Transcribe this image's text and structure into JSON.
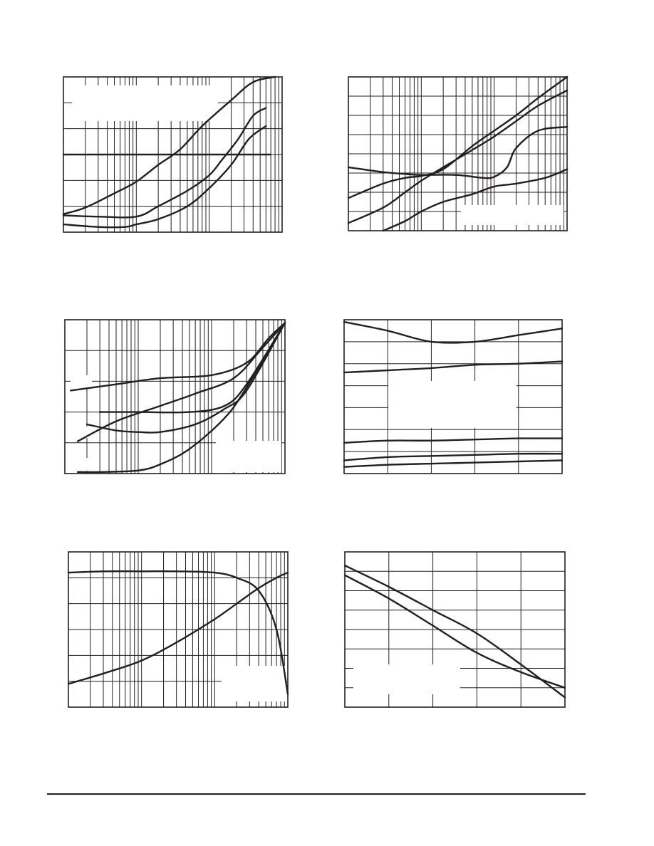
{
  "chart_data": [
    {
      "type": "line",
      "grid": true,
      "xscale": "log",
      "xlim": [
        1,
        1000
      ],
      "ylim": [
        0,
        6
      ],
      "series": [
        {
          "x": [
            1,
            2,
            5,
            10,
            20,
            40,
            80,
            200,
            400,
            800
          ],
          "y": [
            0.7,
            0.95,
            1.5,
            1.95,
            2.6,
            3.2,
            4.1,
            5.1,
            5.8,
            6.0
          ]
        },
        {
          "x": [
            1,
            3,
            10,
            20,
            50,
            100,
            150,
            250,
            400,
            600
          ],
          "y": [
            0.65,
            0.6,
            0.6,
            1.0,
            1.6,
            2.2,
            2.8,
            3.6,
            4.5,
            4.8
          ]
        },
        {
          "x": [
            1,
            3,
            7,
            10,
            20,
            50,
            100,
            200,
            350,
            600
          ],
          "y": [
            0.3,
            0.2,
            0.2,
            0.3,
            0.5,
            1.0,
            1.7,
            2.6,
            3.6,
            4.1
          ]
        },
        {
          "x": [
            1,
            10,
            100,
            700
          ],
          "y": [
            3.0,
            3.0,
            3.0,
            3.0
          ]
        }
      ]
    },
    {
      "type": "line",
      "grid": true,
      "xscale": "log",
      "xlim": [
        1,
        1000
      ],
      "ylim": [
        0,
        8
      ],
      "series": [
        {
          "x": [
            1,
            3,
            6,
            10,
            20,
            50,
            100,
            200,
            400,
            1000
          ],
          "y": [
            1.7,
            2.45,
            2.75,
            2.85,
            3.2,
            4.4,
            5.2,
            6.0,
            6.9,
            8.0
          ]
        },
        {
          "x": [
            1,
            3,
            6,
            10,
            20,
            50,
            100,
            200,
            400,
            1000
          ],
          "y": [
            0.4,
            1.2,
            2.0,
            2.6,
            3.3,
            4.2,
            4.9,
            5.7,
            6.5,
            7.3
          ]
        },
        {
          "x": [
            1,
            3,
            6,
            10,
            30,
            70,
            100,
            150,
            200,
            400,
            1000
          ],
          "y": [
            3.3,
            3.05,
            2.95,
            2.9,
            2.9,
            2.75,
            2.8,
            3.3,
            4.3,
            5.2,
            5.4
          ]
        },
        {
          "x": [
            3,
            6,
            10,
            20,
            50,
            100,
            200,
            500,
            1000
          ],
          "y": [
            0.0,
            0.5,
            1.0,
            1.5,
            1.9,
            2.3,
            2.45,
            2.75,
            3.2
          ]
        }
      ]
    },
    {
      "type": "line",
      "grid": true,
      "xscale": "log",
      "xlim": [
        1,
        1000
      ],
      "ylim": [
        0,
        5
      ],
      "series": [
        {
          "x": [
            1.2,
            5,
            20,
            100,
            300,
            600,
            1000
          ],
          "y": [
            2.7,
            2.9,
            3.1,
            3.2,
            3.6,
            4.4,
            4.9
          ]
        },
        {
          "x": [
            1.5,
            5,
            20,
            60,
            200,
            500,
            1000
          ],
          "y": [
            1.05,
            1.7,
            2.2,
            2.6,
            3.1,
            4.1,
            4.9
          ]
        },
        {
          "x": [
            3,
            10,
            50,
            150,
            300,
            1000
          ],
          "y": [
            2.0,
            2.0,
            2.0,
            2.2,
            2.9,
            4.9
          ]
        },
        {
          "x": [
            2,
            5,
            10,
            20,
            60,
            150,
            300,
            1000
          ],
          "y": [
            1.6,
            1.4,
            1.35,
            1.35,
            1.6,
            2.1,
            2.7,
            4.9
          ]
        },
        {
          "x": [
            1.5,
            3,
            10,
            20,
            50,
            150,
            300,
            1000
          ],
          "y": [
            0.05,
            0.05,
            0.1,
            0.3,
            0.8,
            1.8,
            2.8,
            4.9
          ]
        }
      ]
    },
    {
      "type": "line",
      "grid": true,
      "xlim": [
        0,
        5
      ],
      "ylim": [
        0,
        7
      ],
      "series": [
        {
          "x": [
            0,
            1,
            2,
            3,
            4,
            5
          ],
          "y": [
            6.9,
            6.5,
            6.0,
            6.0,
            6.3,
            6.6
          ]
        },
        {
          "x": [
            0,
            1,
            2,
            3,
            4,
            5
          ],
          "y": [
            4.6,
            4.7,
            4.8,
            4.95,
            5.0,
            5.1
          ]
        },
        {
          "x": [
            0,
            1,
            2,
            3,
            4,
            5
          ],
          "y": [
            1.4,
            1.5,
            1.5,
            1.55,
            1.6,
            1.6
          ]
        },
        {
          "x": [
            0,
            1,
            2,
            3,
            4,
            5
          ],
          "y": [
            0.6,
            0.75,
            0.8,
            0.85,
            0.9,
            0.9
          ]
        },
        {
          "x": [
            0,
            1,
            2,
            3,
            4,
            5
          ],
          "y": [
            0.3,
            0.4,
            0.45,
            0.5,
            0.55,
            0.6
          ]
        }
      ]
    },
    {
      "type": "line",
      "grid": true,
      "xscale": "log",
      "xlim": [
        1,
        1000
      ],
      "ylim": [
        0,
        6
      ],
      "series": [
        {
          "x": [
            1,
            3,
            10,
            30,
            100,
            200,
            400,
            700,
            1000
          ],
          "y": [
            5.2,
            5.25,
            5.25,
            5.25,
            5.2,
            5.0,
            4.5,
            3.0,
            0.5
          ]
        },
        {
          "x": [
            1,
            3,
            10,
            30,
            100,
            200,
            400,
            700,
            1000
          ],
          "y": [
            0.9,
            1.3,
            1.8,
            2.5,
            3.4,
            4.0,
            4.6,
            5.0,
            5.2
          ]
        }
      ]
    },
    {
      "type": "line",
      "grid": true,
      "xlim": [
        0,
        5
      ],
      "ylim": [
        0,
        8
      ],
      "series": [
        {
          "x": [
            0,
            1,
            2,
            3,
            4,
            5
          ],
          "y": [
            7.3,
            6.2,
            5.0,
            3.8,
            2.2,
            0.5
          ]
        },
        {
          "x": [
            0,
            1,
            2,
            3,
            4,
            5
          ],
          "y": [
            6.8,
            5.6,
            4.2,
            2.8,
            1.8,
            1.0
          ]
        }
      ]
    }
  ]
}
